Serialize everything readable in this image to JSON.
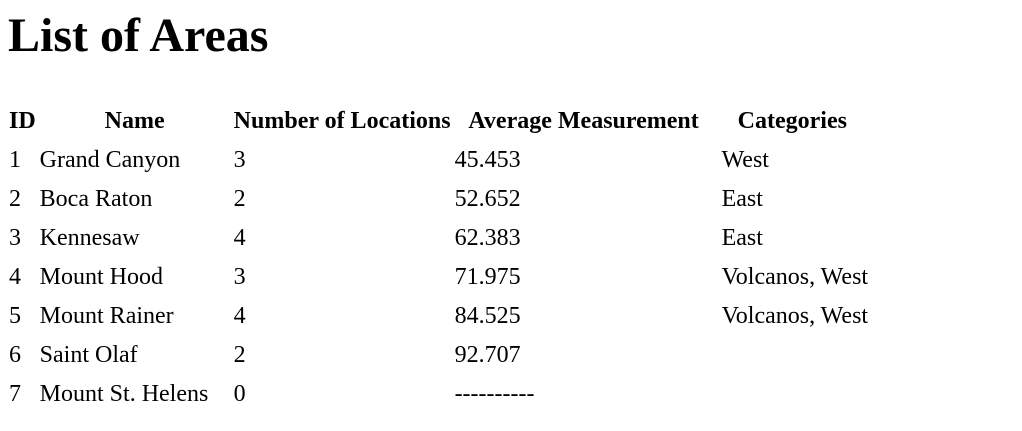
{
  "page": {
    "title": "List of Areas"
  },
  "table": {
    "headers": {
      "id": "ID",
      "name": "Name",
      "count": "Number of Locations",
      "avg": "Average Measurement",
      "categories": "Categories"
    },
    "rows": [
      {
        "id": "1",
        "name": "Grand Canyon",
        "count": "3",
        "avg": "45.453",
        "categories": "West"
      },
      {
        "id": "2",
        "name": "Boca Raton",
        "count": "2",
        "avg": "52.652",
        "categories": "East"
      },
      {
        "id": "3",
        "name": "Kennesaw",
        "count": "4",
        "avg": "62.383",
        "categories": "East"
      },
      {
        "id": "4",
        "name": "Mount Hood",
        "count": "3",
        "avg": "71.975",
        "categories": "Volcanos, West"
      },
      {
        "id": "5",
        "name": "Mount Rainer",
        "count": "4",
        "avg": "84.525",
        "categories": "Volcanos, West"
      },
      {
        "id": "6",
        "name": "Saint Olaf",
        "count": "2",
        "avg": "92.707",
        "categories": ""
      },
      {
        "id": "7",
        "name": "Mount St. Helens",
        "count": "0",
        "avg": "----------",
        "categories": ""
      }
    ]
  }
}
